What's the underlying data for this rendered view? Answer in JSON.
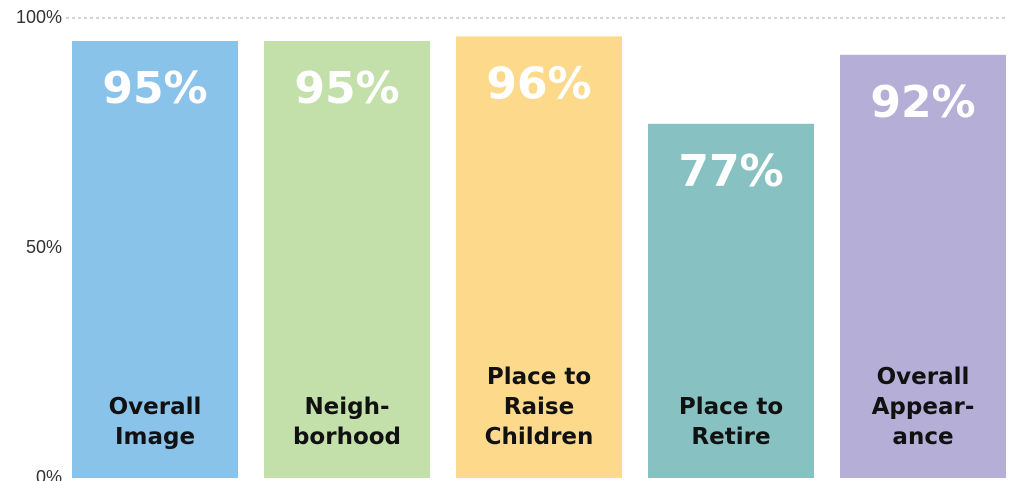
{
  "chart_data": {
    "type": "bar",
    "categories": [
      [
        "Overall",
        "Image"
      ],
      [
        "Neigh-",
        "borhood"
      ],
      [
        "Place to",
        "Raise",
        "Children"
      ],
      [
        "Place to",
        "Retire"
      ],
      [
        "Overall",
        "Appear-",
        "ance"
      ]
    ],
    "values": [
      95,
      95,
      96,
      77,
      92
    ],
    "value_labels": [
      "95%",
      "95%",
      "96%",
      "77%",
      "92%"
    ],
    "colors": [
      "#8ac3ea",
      "#c3e0aa",
      "#fdd98c",
      "#88c1c2",
      "#b5aed6"
    ],
    "ylim": [
      0,
      100
    ],
    "yticks": [
      {
        "value": 0,
        "label": "0%"
      },
      {
        "value": 50,
        "label": "50%"
      },
      {
        "value": 100,
        "label": "100%"
      }
    ],
    "grid_ticks": [
      100
    ]
  }
}
